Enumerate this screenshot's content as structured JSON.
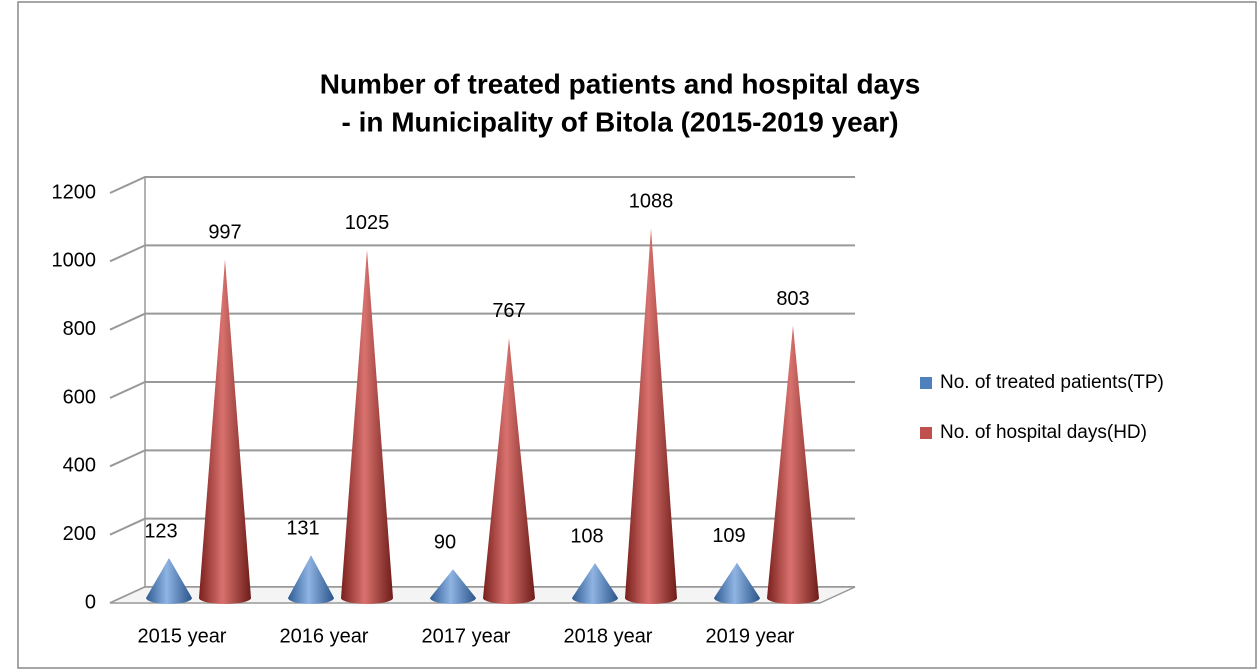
{
  "chart_data": {
    "type": "cone",
    "title": [
      "Number of treated patients and hospital days",
      "- in Municipality of Bitola (2015-2019 year)"
    ],
    "categories": [
      "2015 year",
      "2016 year",
      "2017 year",
      "2018 year",
      "2019 year"
    ],
    "series": [
      {
        "name": "No. of treated patients(TP)",
        "color": "#4f81bd",
        "values": [
          123,
          131,
          90,
          108,
          109
        ]
      },
      {
        "name": "No. of hospital days(HD)",
        "color": "#c0504d",
        "values": [
          997,
          1025,
          767,
          1088,
          803
        ]
      }
    ],
    "ylim": [
      0,
      1200
    ],
    "yticks": [
      0,
      200,
      400,
      600,
      800,
      1000,
      1200
    ],
    "grid": true,
    "legend": "right"
  }
}
